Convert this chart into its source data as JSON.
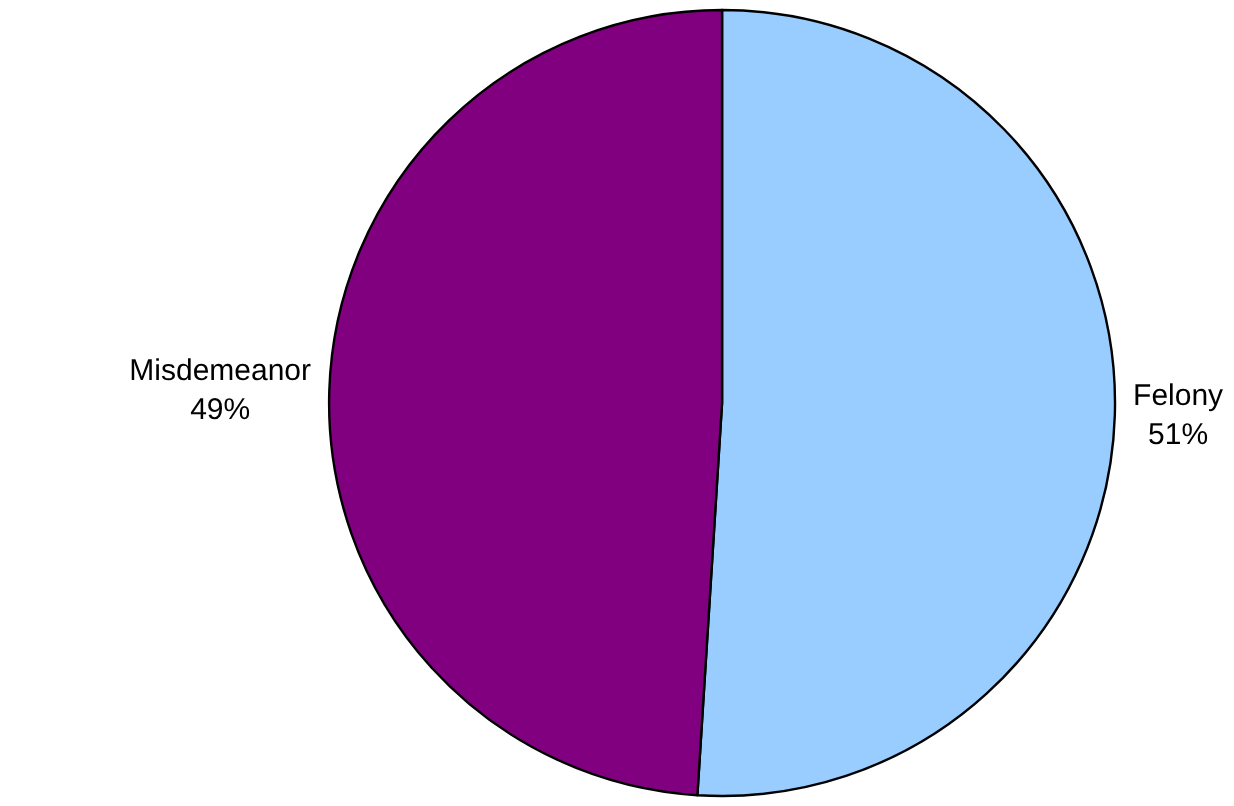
{
  "chart_data": {
    "type": "pie",
    "categories": [
      "Felony",
      "Misdemeanor"
    ],
    "values": [
      51,
      49
    ],
    "colors": [
      "#99ccff",
      "#800080"
    ],
    "value_labels": [
      "51%",
      "49%"
    ],
    "legend": false
  }
}
